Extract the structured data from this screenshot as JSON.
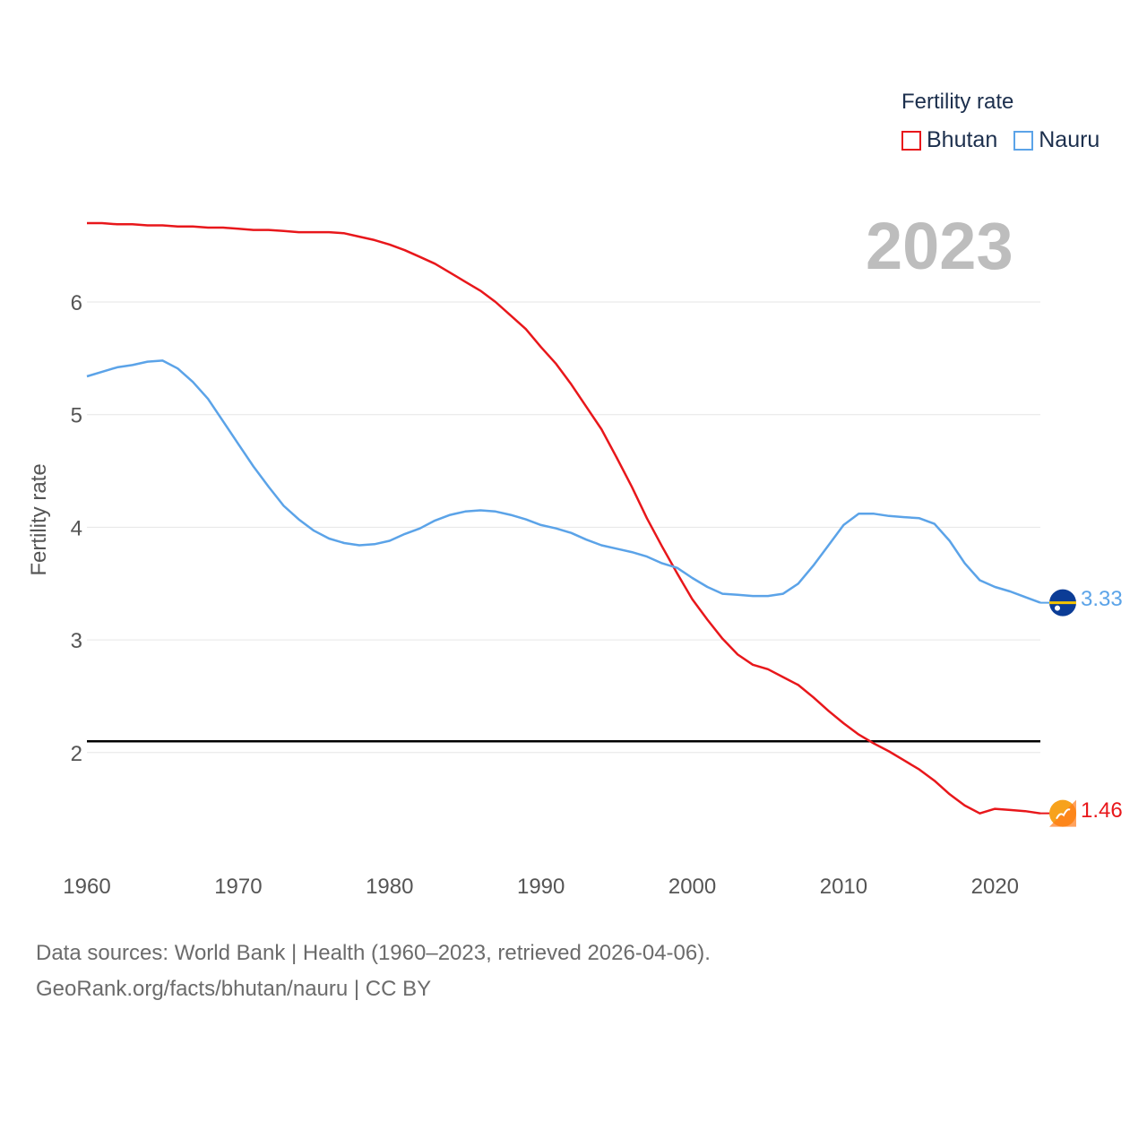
{
  "legend": {
    "title": "Fertility rate",
    "items": [
      {
        "label": "Bhutan",
        "color": "#e8171b"
      },
      {
        "label": "Nauru",
        "color": "#5ba3e8"
      }
    ]
  },
  "year_label": "2023",
  "source": {
    "line1": "Data sources: World Bank | Health (1960–2023, retrieved 2026-04-06).",
    "line2": "GeoRank.org/facts/bhutan/nauru | CC BY"
  },
  "end_labels": {
    "bhutan": "1.46",
    "nauru": "3.33"
  },
  "chart_data": {
    "type": "line",
    "title": "Fertility rate",
    "xlabel": "",
    "ylabel": "Fertility rate",
    "xlim": [
      1960,
      2023
    ],
    "ylim": [
      1.0,
      7.0
    ],
    "x_ticks": [
      1960,
      1970,
      1980,
      1990,
      2000,
      2010,
      2020
    ],
    "y_ticks": [
      2,
      3,
      4,
      5,
      6
    ],
    "reference_line": {
      "y": 2.1,
      "color": "#000000"
    },
    "x": [
      1960,
      1961,
      1962,
      1963,
      1964,
      1965,
      1966,
      1967,
      1968,
      1969,
      1970,
      1971,
      1972,
      1973,
      1974,
      1975,
      1976,
      1977,
      1978,
      1979,
      1980,
      1981,
      1982,
      1983,
      1984,
      1985,
      1986,
      1987,
      1988,
      1989,
      1990,
      1991,
      1992,
      1993,
      1994,
      1995,
      1996,
      1997,
      1998,
      1999,
      2000,
      2001,
      2002,
      2003,
      2004,
      2005,
      2006,
      2007,
      2008,
      2009,
      2010,
      2011,
      2012,
      2013,
      2014,
      2015,
      2016,
      2017,
      2018,
      2019,
      2020,
      2021,
      2022,
      2023
    ],
    "series": [
      {
        "name": "Bhutan",
        "color": "#e8171b",
        "values": [
          6.7,
          6.7,
          6.69,
          6.69,
          6.68,
          6.68,
          6.67,
          6.67,
          6.66,
          6.66,
          6.65,
          6.64,
          6.64,
          6.63,
          6.62,
          6.62,
          6.62,
          6.61,
          6.58,
          6.55,
          6.51,
          6.46,
          6.4,
          6.34,
          6.26,
          6.18,
          6.1,
          6.0,
          5.88,
          5.76,
          5.6,
          5.45,
          5.27,
          5.07,
          4.87,
          4.62,
          4.36,
          4.08,
          3.83,
          3.59,
          3.36,
          3.18,
          3.01,
          2.87,
          2.78,
          2.74,
          2.67,
          2.6,
          2.49,
          2.37,
          2.26,
          2.16,
          2.08,
          2.01,
          1.93,
          1.85,
          1.75,
          1.63,
          1.53,
          1.46,
          1.5,
          1.49,
          1.48,
          1.46
        ]
      },
      {
        "name": "Nauru",
        "color": "#5ba3e8",
        "values": [
          5.34,
          5.38,
          5.42,
          5.44,
          5.47,
          5.48,
          5.41,
          5.29,
          5.14,
          4.94,
          4.74,
          4.54,
          4.36,
          4.19,
          4.07,
          3.97,
          3.9,
          3.86,
          3.84,
          3.85,
          3.88,
          3.94,
          3.99,
          4.06,
          4.11,
          4.14,
          4.15,
          4.14,
          4.11,
          4.07,
          4.02,
          3.99,
          3.95,
          3.89,
          3.84,
          3.81,
          3.78,
          3.74,
          3.68,
          3.64,
          3.55,
          3.47,
          3.41,
          3.4,
          3.39,
          3.39,
          3.41,
          3.5,
          3.66,
          3.84,
          4.02,
          4.12,
          4.12,
          4.1,
          4.09,
          4.08,
          4.03,
          3.88,
          3.68,
          3.53,
          3.47,
          3.43,
          3.38,
          3.33
        ]
      }
    ]
  }
}
